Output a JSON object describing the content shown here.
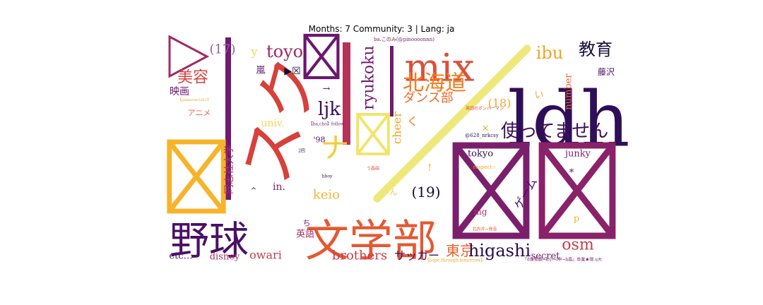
{
  "title": "Months: 7 Community: 3 | Lang: ja",
  "chart_data": {
    "type": "wordcloud",
    "title": "Months: 7 Community: 3 | Lang: ja",
    "colormap": "inferno",
    "words": [
      {
        "text": "ldh",
        "weight": 100,
        "color": "#2e0f57"
      },
      {
        "text": "野球",
        "weight": 70,
        "color": "#4a1066"
      },
      {
        "text": "文学部",
        "weight": 72,
        "color": "#e35933"
      },
      {
        "text": "mix",
        "weight": 62,
        "color": "#dd4f3b"
      },
      {
        "text": "スク",
        "weight": 60,
        "color": "#d6413a"
      },
      {
        "text": "|",
        "weight": 60,
        "color": "#721a6e"
      },
      {
        "text": "||",
        "weight": 55,
        "color": "#b43359"
      },
      {
        "text": "☒",
        "weight": 90,
        "color": "#7b1f6d"
      },
      {
        "text": "☒",
        "weight": 90,
        "color": "#8a226a"
      },
      {
        "text": "☒",
        "weight": 60,
        "color": "#f7b32a"
      },
      {
        "text": "☒",
        "weight": 45,
        "color": "#6a176e"
      },
      {
        "text": "☒",
        "weight": 40,
        "color": "#f1e46a"
      },
      {
        "text": "▷",
        "weight": 50,
        "color": "#a02a63"
      },
      {
        "text": "/",
        "weight": 70,
        "color": "#eee87a"
      },
      {
        "text": "北海道",
        "weight": 36,
        "color": "#f37d20"
      },
      {
        "text": "使ってません",
        "weight": 30,
        "color": "#3b0f5e"
      },
      {
        "text": "教育",
        "weight": 28,
        "color": "#1b0c3a"
      },
      {
        "text": "ibu",
        "weight": 26,
        "color": "#f3a31e"
      },
      {
        "text": "toyo",
        "weight": 26,
        "color": "#9c2964"
      },
      {
        "text": "美容",
        "weight": 26,
        "color": "#d44842"
      },
      {
        "text": "映画",
        "weight": 16,
        "color": "#6a176e"
      },
      {
        "text": "ryukoku",
        "weight": 30,
        "color": "#731a6e"
      },
      {
        "text": "ljk",
        "weight": 30,
        "color": "#3a0c5e"
      },
      {
        "text": "ナ",
        "weight": 40,
        "color": "#f6cc3a"
      },
      {
        "text": "ダンス部",
        "weight": 20,
        "color": "#ea6a2a"
      },
      {
        "text": "(17)",
        "weight": 20,
        "color": "#9a58b0"
      },
      {
        "text": "(18)",
        "weight": 20,
        "color": "#f0a638"
      },
      {
        "text": "(19)",
        "weight": 24,
        "color": "#170a33"
      },
      {
        "text": "東京",
        "weight": 22,
        "color": "#e9612d"
      },
      {
        "text": "higashi",
        "weight": 26,
        "color": "#2a0b4a"
      },
      {
        "text": "osm",
        "weight": 22,
        "color": "#c53d4c"
      },
      {
        "text": "brothers",
        "weight": 20,
        "color": "#c53d4c"
      },
      {
        "text": "サッカー",
        "weight": 18,
        "color": "#3d0f60"
      },
      {
        "text": "secret",
        "weight": 14,
        "color": "#6a176e"
      },
      {
        "text": "owari",
        "weight": 16,
        "color": "#c53d4c"
      },
      {
        "text": "disney",
        "weight": 14,
        "color": "#ad3060"
      },
      {
        "text": "etc…",
        "weight": 14,
        "color": "#4a1066"
      },
      {
        "text": "英語",
        "weight": 14,
        "color": "#a52c60"
      },
      {
        "text": "keio",
        "weight": 20,
        "color": "#f5b43a"
      },
      {
        "text": "in.",
        "weight": 16,
        "color": "#7b1f6d"
      },
      {
        "text": "univ.",
        "weight": 16,
        "color": "#f7d051"
      },
      {
        "text": "同志社大学",
        "weight": 16,
        "color": "#a83463"
      },
      {
        "text": "アニメ",
        "weight": 12,
        "color": "#e56a4a"
      },
      {
        "text": "嵐",
        "weight": 14,
        "color": "#5d126e"
      },
      {
        "text": "tokyo",
        "weight": 14,
        "color": "#2d0f4f"
      },
      {
        "text": "junky",
        "weight": 14,
        "color": "#721a6e"
      },
      {
        "text": "number",
        "weight": 14,
        "color": "#e9612d"
      },
      {
        "text": "ゲーム",
        "weight": 18,
        "color": "#3d0f60"
      },
      {
        "text": "cheer",
        "weight": 18,
        "color": "#f3a31e"
      },
      {
        "text": "mg",
        "weight": 14,
        "color": "#b43359"
      },
      {
        "text": "藤沢",
        "weight": 12,
        "color": "#4a1066"
      },
      {
        "text": "'98",
        "weight": 12,
        "color": "#4a1066"
      },
      {
        "text": "く",
        "weight": 18,
        "color": "#f37d20"
      },
      {
        "text": "y",
        "weight": 18,
        "color": "#f7d051"
      },
      {
        "text": "い",
        "weight": 14,
        "color": "#f3a31e"
      },
      {
        "text": "p",
        "weight": 14,
        "color": "#f7b32a"
      },
      {
        "text": "*",
        "weight": 14,
        "color": "#3d0f60"
      },
      {
        "text": "!",
        "weight": 14,
        "color": "#f3a31e"
      },
      {
        "text": "ち",
        "weight": 12,
        "color": "#721a6e"
      },
      {
        "text": "ん",
        "weight": 12,
        "color": "#f5c14a"
      },
      {
        "text": "×",
        "weight": 14,
        "color": "#f3a31e"
      },
      {
        "text": "→",
        "weight": 14,
        "color": "#4a1066"
      },
      {
        "text": "^",
        "weight": 12,
        "color": "#3d0f60"
      },
      {
        "text": "@628_nrkcsy",
        "weight": 8,
        "color": "#2d0f4f"
      },
      {
        "text": "ba.このみ(@pinoooonnn)",
        "weight": 8,
        "color": "#721a6e"
      },
      {
        "text": "【ba,cho】follow",
        "weight": 6,
        "color": "#721a6e"
      },
      {
        "text": "respect☆",
        "weight": 7,
        "color": "#f3a31e"
      },
      {
        "text": "bboy",
        "weight": 7,
        "color": "#2d0f4f"
      },
      {
        "text": "2回",
        "weight": 6,
        "color": "#2d0f4f"
      },
      {
        "text": "う高画",
        "weight": 6,
        "color": "#d44842"
      },
      {
        "text": "英国のボンバーマン",
        "weight": 6,
        "color": "#d44842"
      },
      {
        "text": "『8保育園→k小→i中→h高』卒業★現.u大",
        "weight": 6,
        "color": "#721a6e"
      },
      {
        "text": "【hope.through.tomorrow】",
        "weight": 6,
        "color": "#f3a31e"
      },
      {
        "text": "北内弁→発音",
        "weight": 6,
        "color": "#e9612d"
      },
      {
        "text": "【jamboree1d11】",
        "weight": 5,
        "color": "#f3a31e"
      },
      {
        "text": "▶☒",
        "weight": 14,
        "color": "#170a33"
      }
    ]
  }
}
